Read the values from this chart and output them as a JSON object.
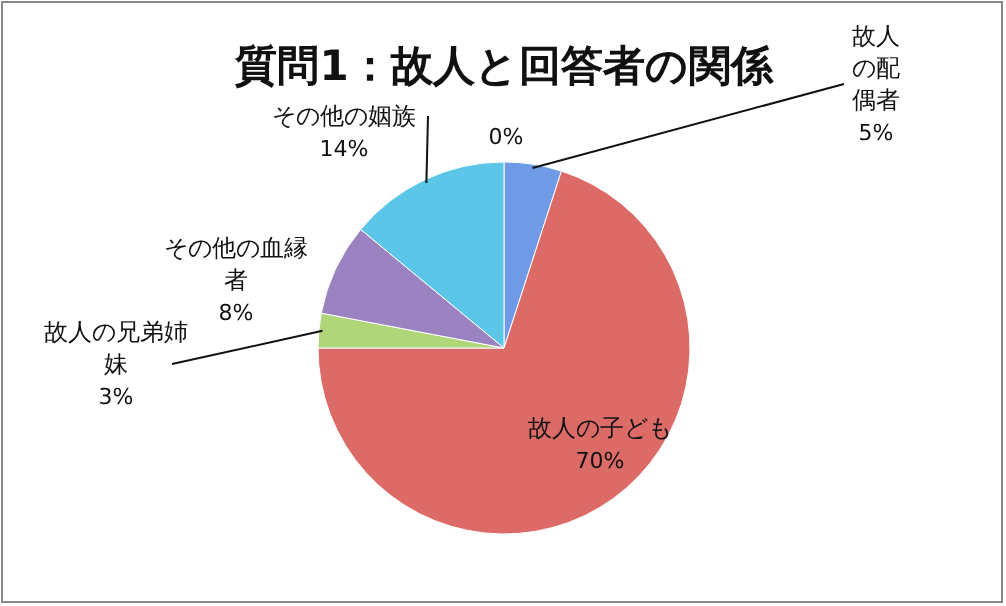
{
  "chart_data": {
    "type": "pie",
    "title": "質問1：故人と回答者の関係",
    "categories": [
      "故人の配偶者",
      "故人の子ども",
      "故人の兄弟姉妹",
      "その他の血縁者",
      "その他の姻族",
      null
    ],
    "values": [
      5,
      70,
      3,
      8,
      14,
      0
    ],
    "colors": [
      "#6f9ae6",
      "#dc6b68",
      "#b0d67a",
      "#9b82c0",
      "#5cc6e8",
      "#9bb8d8"
    ],
    "value_labels": [
      "5%",
      "70%",
      "3%",
      "8%",
      "14%",
      "0%"
    ]
  }
}
